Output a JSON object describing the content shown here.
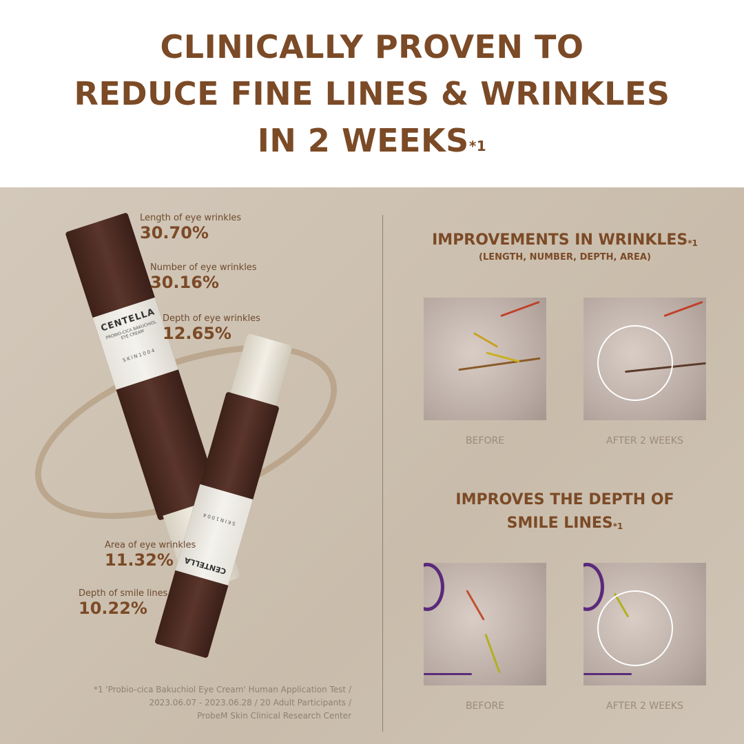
{
  "headline": {
    "line1": "CLINICALLY PROVEN TO",
    "line2": "REDUCE FINE LINES & WRINKLES",
    "line3": "IN 2 WEEKS",
    "footnote_mark": "*1"
  },
  "stats": [
    {
      "label": "Length of eye wrinkles",
      "value": "30.70%"
    },
    {
      "label": "Number of eye wrinkles",
      "value": "30.16%"
    },
    {
      "label": "Depth of eye wrinkles",
      "value": "12.65%"
    },
    {
      "label": "Area of eye wrinkles",
      "value": "11.32%"
    },
    {
      "label": "Depth of smile lines",
      "value": "10.22%"
    }
  ],
  "product": {
    "brand": "CENTELLA",
    "maker": "SKIN1004",
    "name": "PROBIO-CICA BAKUCHIOL EYE CREAM"
  },
  "section1": {
    "title": "IMPROVEMENTS IN WRINKLES",
    "mark": "*1",
    "subtitle": "(LENGTH, NUMBER, DEPTH, AREA)",
    "before": "BEFORE",
    "after": "AFTER 2 WEEKS"
  },
  "section2": {
    "title_line1": "IMPROVES THE DEPTH OF",
    "title_line2": "SMILE LINES",
    "mark": "*1",
    "before": "BEFORE",
    "after": "AFTER 2 WEEKS"
  },
  "footnote": {
    "line1": "*1 'Probio-cica Bakuchiol Eye Cream' Human Application Test /",
    "line2": "2023.06.07 - 2023.06.28 / 20 Adult Participants /",
    "line3": "ProbeM Skin Clinical Research Center"
  },
  "colors": {
    "accent": "#7b4a26",
    "panel": "#cfc3b4",
    "tube": "#4a2a22"
  }
}
